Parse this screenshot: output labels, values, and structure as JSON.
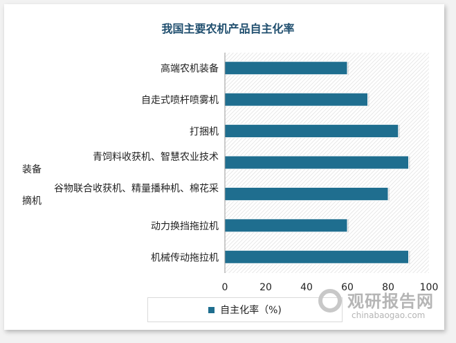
{
  "chart_data": {
    "type": "bar",
    "orientation": "horizontal",
    "title": "我国主要农机产品自主化率",
    "categories": [
      "高端农机装备",
      "自走式喷杆喷雾机",
      "打捆机",
      "青饲料收获机、智慧农业技术装备",
      "谷物联合收获机、精量播种机、棉花采摘机",
      "动力换挡拖拉机",
      "机械传动拖拉机"
    ],
    "series": [
      {
        "name": "自主化率（%)",
        "values": [
          60,
          70,
          85,
          90,
          80,
          60,
          90
        ]
      }
    ],
    "xlim": [
      0,
      100
    ],
    "xticks": [
      0,
      20,
      40,
      60,
      80,
      100
    ],
    "grid": false,
    "legend": "bottom",
    "bar_color": "#1f6e8f"
  },
  "watermark": {
    "brand": "观研报告网",
    "url": "chinabaogao.com"
  }
}
